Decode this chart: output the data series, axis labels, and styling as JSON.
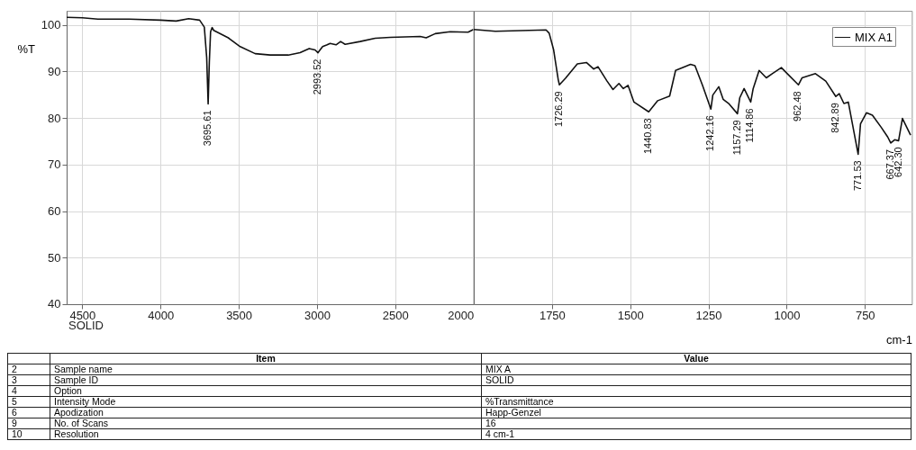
{
  "chart_data": [
    {
      "type": "line",
      "ylabel": "%T",
      "xlim": [
        4600,
        2000
      ],
      "xticks": [
        4500,
        4000,
        3500,
        3000,
        2500,
        2000
      ],
      "ylim": [
        40,
        103
      ],
      "yticks": [
        40,
        50,
        60,
        70,
        80,
        90,
        100
      ],
      "grid": true,
      "marker": "none",
      "line_style": "solid",
      "series": [
        {
          "color": "#111111",
          "x": [
            4600,
            4500,
            4400,
            4200,
            4000,
            3900,
            3820,
            3750,
            3720,
            3705,
            3695.61,
            3688,
            3680,
            3670,
            3660,
            3567,
            3491,
            3395,
            3299,
            3184,
            3108,
            3050,
            3012,
            2993.52,
            2964,
            2935,
            2916,
            2878,
            2849,
            2820,
            2724,
            2628,
            2532,
            2340,
            2302,
            2244,
            2149,
            2034,
            2000
          ],
          "values": [
            101.6,
            101.5,
            101.2,
            101.2,
            101.0,
            100.8,
            101.3,
            101.0,
            99.5,
            93,
            83.0,
            92,
            98.5,
            99.4,
            98.8,
            97.2,
            95.3,
            93.8,
            93.5,
            93.5,
            94.0,
            94.9,
            94.6,
            94.0,
            95.3,
            95.7,
            96.0,
            95.7,
            96.4,
            95.8,
            96.4,
            97.1,
            97.3,
            97.5,
            97.2,
            98.1,
            98.5,
            98.4,
            99.0
          ]
        }
      ],
      "annotations": [
        {
          "text": "3695.61",
          "x": 3695.61,
          "y": 83.0
        },
        {
          "text": "2993.52",
          "x": 2993.52,
          "y": 94.0
        },
        "SOLID",
        "Item",
        "Value",
        "2",
        "Sample name",
        "MIX A",
        "3",
        "Sample ID",
        "SOLID",
        "4",
        "Option",
        null,
        "5",
        "Intensity Mode",
        "%Transmittance",
        "6",
        "Apodization",
        "Happ-Genzel",
        "9",
        "No. of Scans",
        "16",
        "10",
        "Resolution",
        "4 cm-1"
      ]
    },
    {
      "type": "line",
      "xlabel": "cm-1",
      "xlim": [
        2000,
        600
      ],
      "xticks": [
        1750,
        1500,
        1250,
        1000,
        750
      ],
      "ylim": [
        40,
        103
      ],
      "yticks": [
        40,
        50,
        60,
        70,
        80,
        90,
        100
      ],
      "tick_labels": "x",
      "grid": true,
      "legend": "top right",
      "marker": "none",
      "line_style": "solid",
      "series": [
        {
          "name": "MIX A1",
          "color": "#111111",
          "x": [
            2000,
            1931,
            1769,
            1759,
            1745,
            1730,
            1726.29,
            1707,
            1669,
            1640,
            1617,
            1603,
            1574,
            1555,
            1536,
            1522,
            1507,
            1488,
            1440.83,
            1412,
            1374,
            1355,
            1307,
            1293,
            1269,
            1242.16,
            1236,
            1217,
            1203,
            1184,
            1157.29,
            1150,
            1136,
            1114.86,
            1107,
            1088,
            1065,
            1046,
            1017,
            998,
            962.48,
            951,
            908,
            875,
            842.89,
            832,
            817,
            803,
            771.53,
            764,
            745,
            726,
            698,
            677,
            667.37,
            655,
            642.3,
            630,
            604
          ],
          "values": [
            99.0,
            98.6,
            98.9,
            98.2,
            94.7,
            88.2,
            87.1,
            88.5,
            91.6,
            91.9,
            90.5,
            91.0,
            87.9,
            86.1,
            87.4,
            86.3,
            87.0,
            83.4,
            81.3,
            83.7,
            84.7,
            90.2,
            91.5,
            91.2,
            87.0,
            81.9,
            84.9,
            86.7,
            84.0,
            83.0,
            80.9,
            84.3,
            86.3,
            83.4,
            86.3,
            90.2,
            88.6,
            89.5,
            90.8,
            89.5,
            87.1,
            88.6,
            89.5,
            87.9,
            84.6,
            85.2,
            83.1,
            83.4,
            72.2,
            78.7,
            81.1,
            80.6,
            78.0,
            75.9,
            74.6,
            75.3,
            75.1,
            79.9,
            76.3
          ]
        }
      ],
      "annotations": [
        {
          "text": "1726.29",
          "x": 1726.29,
          "y": 87.1
        },
        {
          "text": "1440.83",
          "x": 1440.83,
          "y": 81.3
        },
        {
          "text": "1242.16",
          "x": 1242.16,
          "y": 81.9
        },
        {
          "text": "1157.29",
          "x": 1157.29,
          "y": 80.9
        },
        {
          "text": "1114.86",
          "x": 1114.86,
          "y": 83.4
        },
        {
          "text": "962.48",
          "x": 962.48,
          "y": 87.1
        },
        {
          "text": "842.89",
          "x": 842.89,
          "y": 84.6
        },
        {
          "text": "771.53",
          "x": 771.53,
          "y": 72.2
        },
        {
          "text": "667.37",
          "x": 667.37,
          "y": 74.6
        },
        {
          "text": "642.30",
          "x": 642.3,
          "y": 75.1
        }
      ]
    }
  ]
}
